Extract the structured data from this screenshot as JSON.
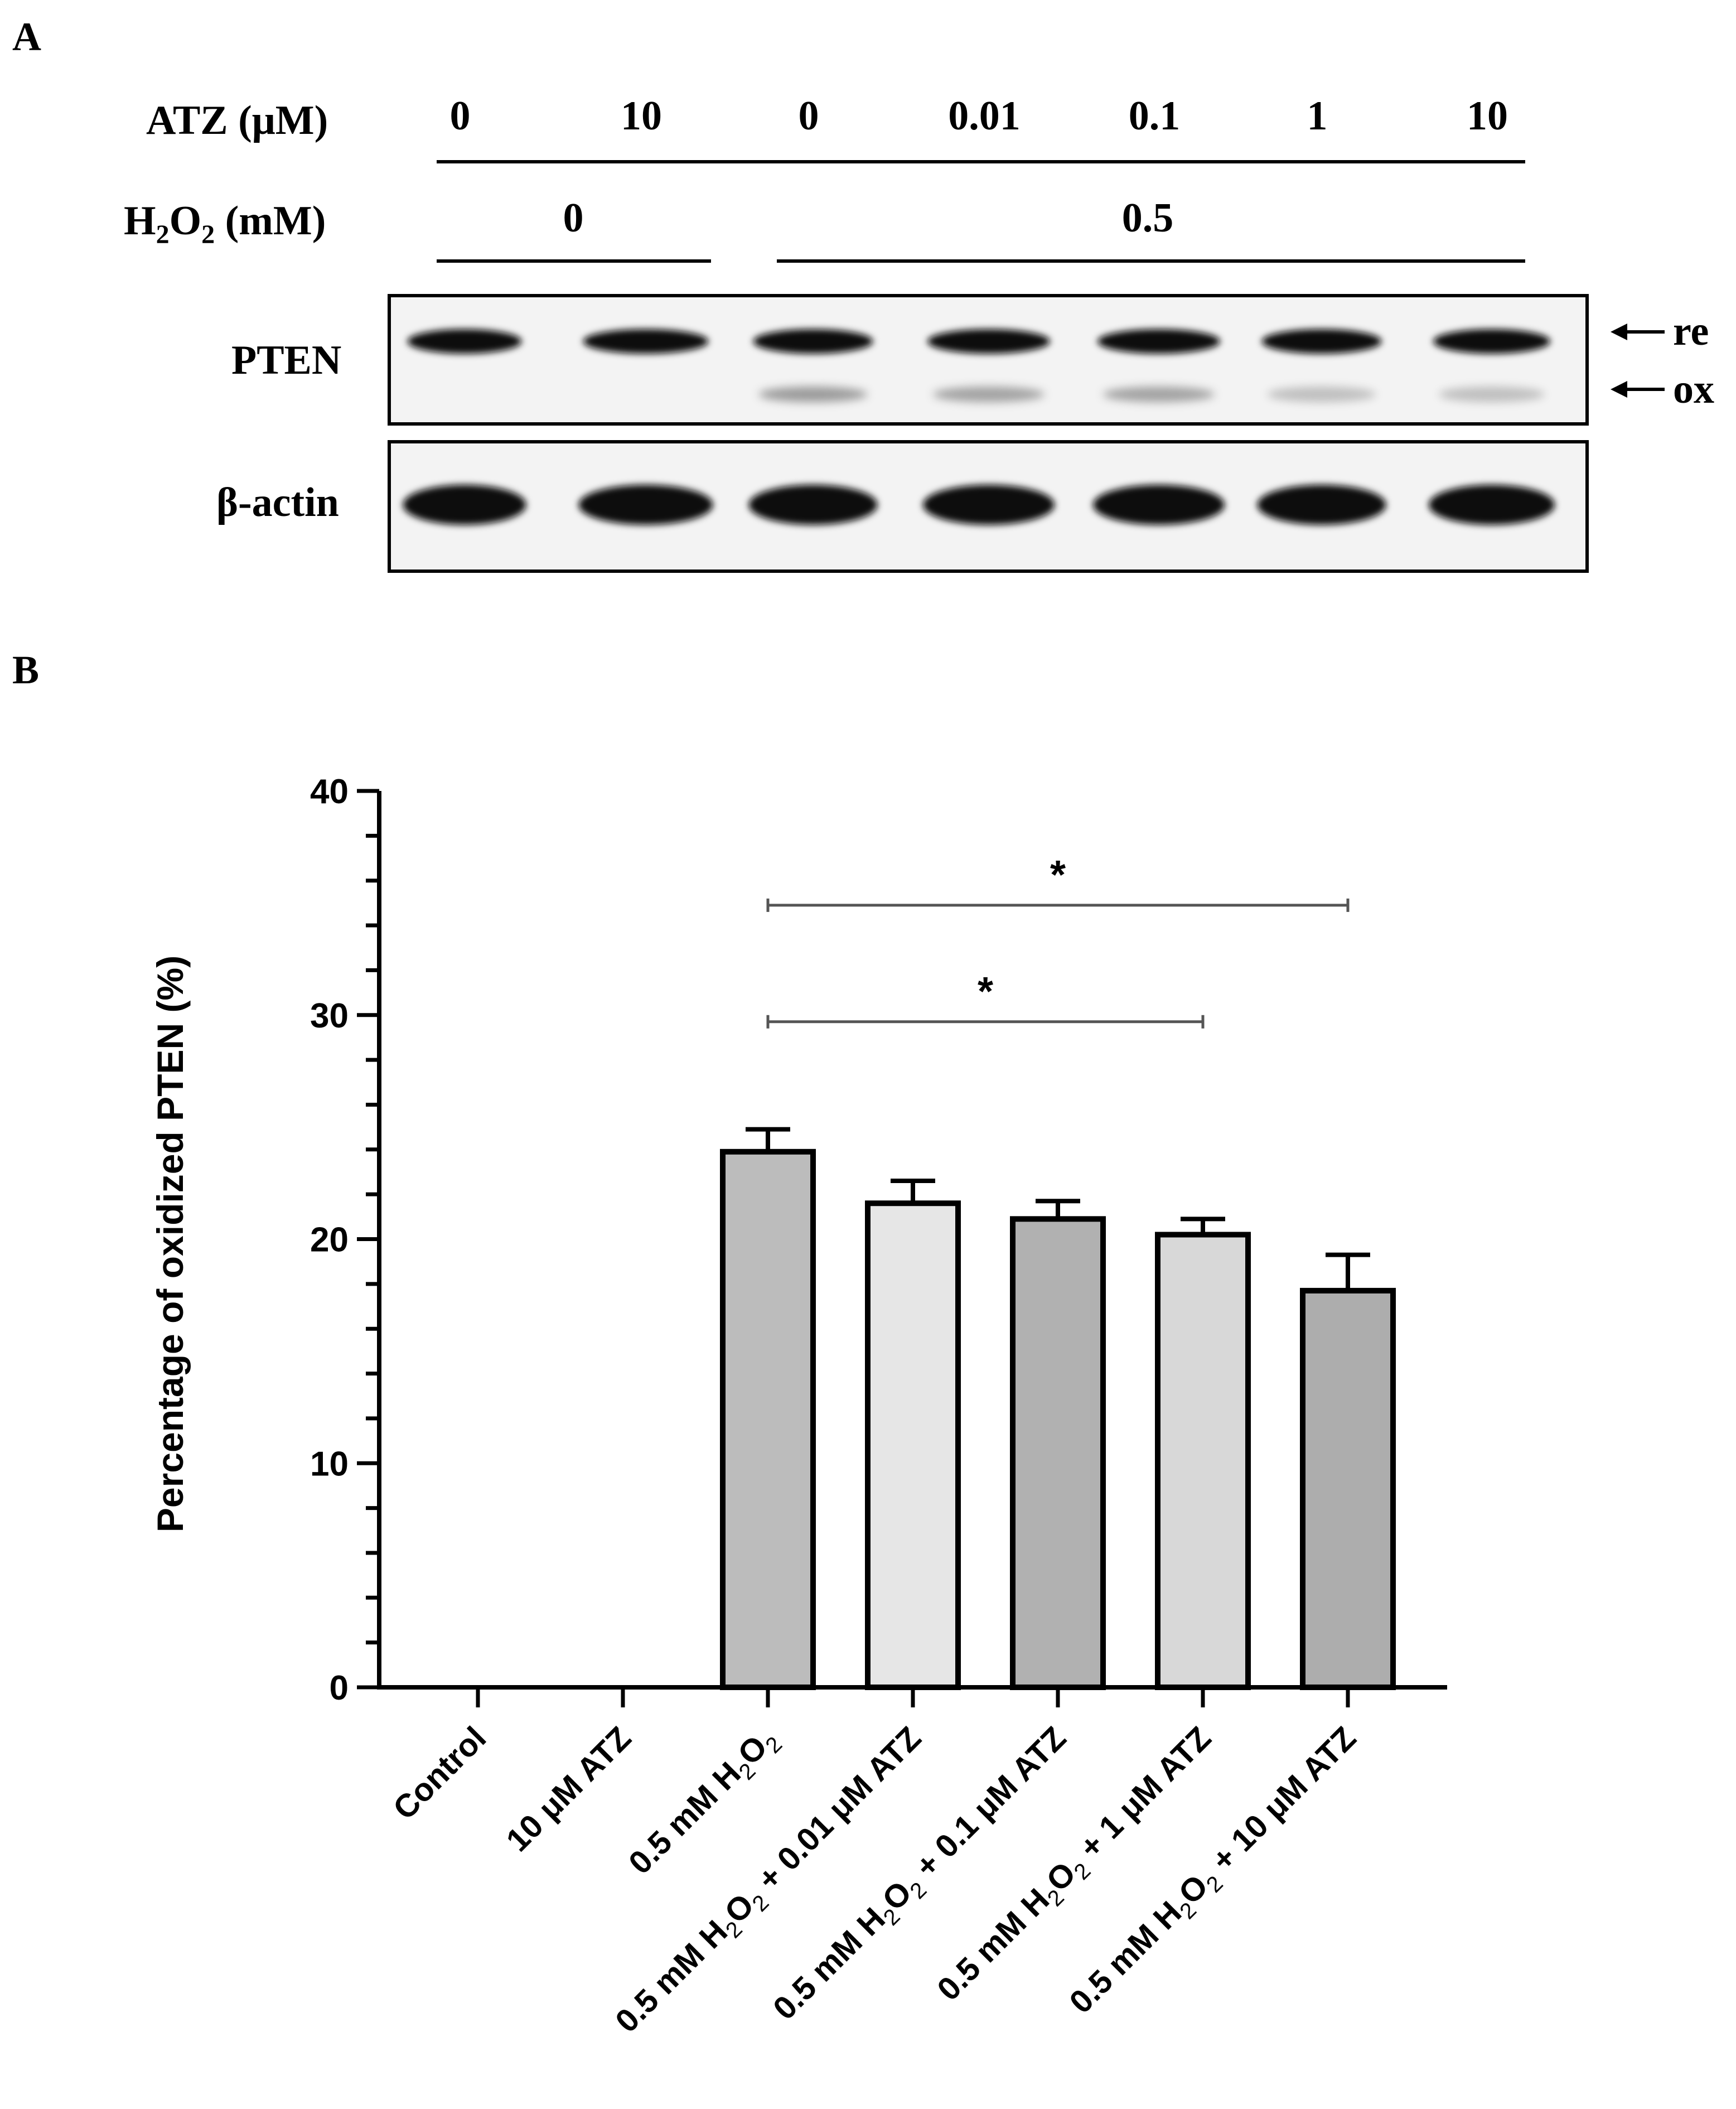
{
  "panel_a": {
    "letter": "A",
    "atz_label": "ATZ (μM)",
    "atz_values": [
      "0",
      "10",
      "0",
      "0.01",
      "0.1",
      "1",
      "10"
    ],
    "h2o2_label": {
      "base": "H",
      "sub1": "2",
      "mid": "O",
      "sub2": "2",
      "tail": " (mM)"
    },
    "h2o2_groups": [
      "0",
      "0.5"
    ],
    "blot_rows": [
      "PTEN",
      "β-actin"
    ],
    "arrows": [
      "re",
      "ox"
    ]
  },
  "chart_data": {
    "panel_letter": "B",
    "type": "bar",
    "ylabel": "Percentage of oxidized PTEN (%)",
    "ylim": [
      0,
      40
    ],
    "yticks": [
      0,
      10,
      20,
      30,
      40
    ],
    "grid": false,
    "categories": [
      {
        "pre": "Control"
      },
      {
        "pre": "10 μM ATZ"
      },
      {
        "pre": "0.5 mM H",
        "sub1": "2",
        "mid": "O",
        "sub2": "2",
        "post": ""
      },
      {
        "pre": "0.5 mM H",
        "sub1": "2",
        "mid": "O",
        "sub2": "2",
        "post": " + 0.01 μM ATZ"
      },
      {
        "pre": "0.5 mM H",
        "sub1": "2",
        "mid": "O",
        "sub2": "2",
        "post": " + 0.1 μM ATZ"
      },
      {
        "pre": "0.5 mM H",
        "sub1": "2",
        "mid": "O",
        "sub2": "2",
        "post": " + 1 μM ATZ"
      },
      {
        "pre": "0.5 mM H",
        "sub1": "2",
        "mid": "O",
        "sub2": "2",
        "post": " + 10 μM ATZ"
      }
    ],
    "values": [
      0,
      0,
      23.9,
      21.6,
      20.9,
      20.2,
      17.7
    ],
    "errors": [
      0,
      0,
      1.0,
      1.0,
      0.8,
      0.7,
      1.6
    ],
    "bar_colors": [
      "#bcbcbc",
      "#bcbcbc",
      "#bcbcbc",
      "#e6e6e6",
      "#b1b1b1",
      "#d8d8d8",
      "#adadad"
    ],
    "significance": [
      {
        "from": 2,
        "to": 5,
        "label": "*",
        "y": 29.7
      },
      {
        "from": 2,
        "to": 6,
        "label": "*",
        "y": 34.9
      }
    ]
  }
}
